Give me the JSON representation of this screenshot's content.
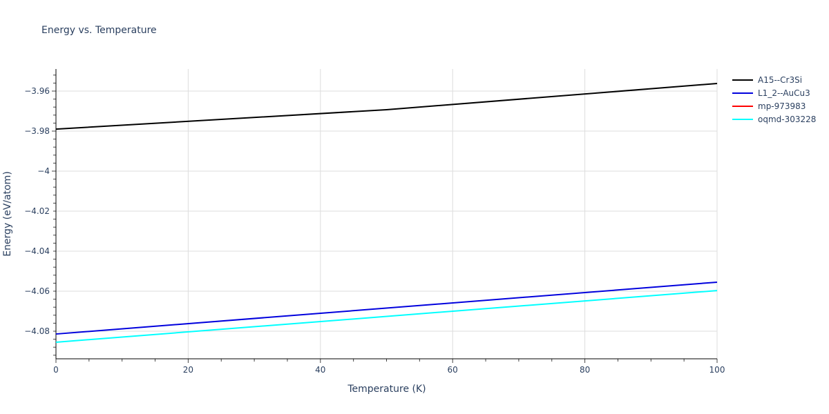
{
  "chart_data": {
    "type": "line",
    "title": "Energy vs. Temperature",
    "xlabel": "Temperature (K)",
    "ylabel": "Energy (eV/atom)",
    "xlim": [
      0,
      100
    ],
    "ylim": [
      -4.093,
      -3.949
    ],
    "xticks": [
      0,
      20,
      40,
      60,
      80,
      100
    ],
    "xtick_labels": [
      "0",
      "20",
      "40",
      "60",
      "80",
      "100"
    ],
    "yticks": [
      -3.96,
      -3.98,
      -4.0,
      -4.02,
      -4.04,
      -4.06,
      -4.08
    ],
    "ytick_labels": [
      "−3.96",
      "−3.98",
      "−4",
      "−4.02",
      "−4.04",
      "−4.06",
      "−4.08"
    ],
    "grid": true,
    "legend_position": "top-right outside",
    "series": [
      {
        "name": "A15--Cr3Si",
        "color": "#000000",
        "x": [
          0,
          50,
          100
        ],
        "y": [
          -3.979,
          -3.9693,
          -3.9562
        ]
      },
      {
        "name": "L1_2--AuCu3",
        "color": "#0000dd",
        "x": [
          0,
          100
        ],
        "y": [
          -4.0814,
          -4.0555
        ]
      },
      {
        "name": "mp-973983",
        "color": "#ff0000",
        "x": [],
        "y": []
      },
      {
        "name": "oqmd-303228",
        "color": "#00ffff",
        "x": [
          0,
          100
        ],
        "y": [
          -4.0855,
          -4.0597
        ]
      }
    ]
  }
}
